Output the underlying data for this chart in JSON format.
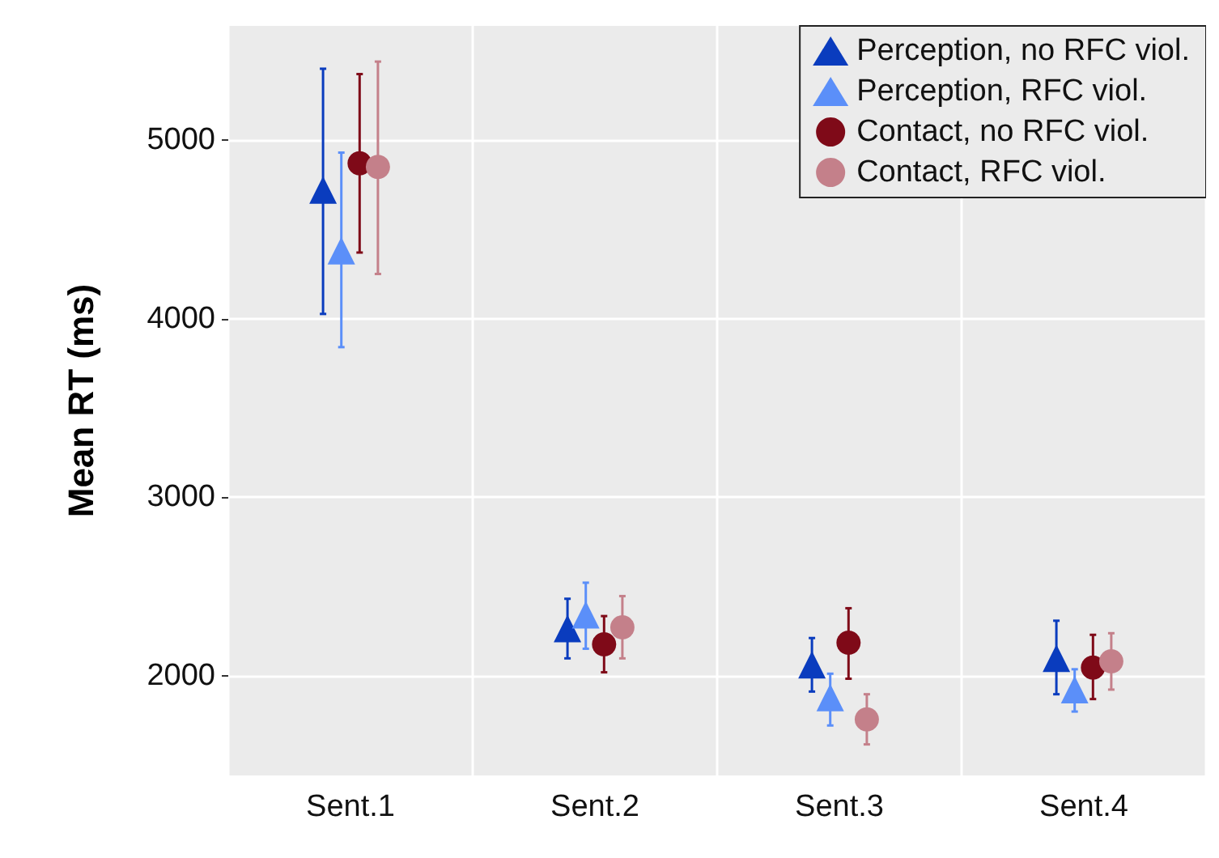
{
  "chart_data": {
    "type": "scatter",
    "ylabel": "Mean RT (ms)",
    "categories": [
      "Sent.1",
      "Sent.2",
      "Sent.3",
      "Sent.4"
    ],
    "ylim": [
      1440,
      5640
    ],
    "yticks": [
      2000,
      3000,
      4000,
      5000
    ],
    "grid": true,
    "legend": "top right",
    "series": [
      {
        "name": "Perception, no RFC viol.",
        "color": "#0a3cbe",
        "marker": "triangle",
        "values": [
          4720,
          2263,
          2060,
          2096
        ],
        "errors": [
          [
            4026,
            5400
          ],
          [
            2096,
            2430
          ],
          [
            1910,
            2210
          ],
          [
            1895,
            2307
          ]
        ]
      },
      {
        "name": "Perception, RFC viol.",
        "color": "#5b8ff9",
        "marker": "triangle",
        "values": [
          4380,
          2340,
          1877,
          1921
        ],
        "errors": [
          [
            3840,
            4930
          ],
          [
            2150,
            2520
          ],
          [
            1720,
            2010
          ],
          [
            1798,
            2035
          ]
        ]
      },
      {
        "name": "Contact, no RFC viol.",
        "color": "#7f0a18",
        "marker": "circle",
        "values": [
          4870,
          2175,
          2184,
          2044
        ],
        "errors": [
          [
            4370,
            5370
          ],
          [
            2018,
            2333
          ],
          [
            1982,
            2377
          ],
          [
            1868,
            2228
          ]
        ]
      },
      {
        "name": "Contact, RFC viol.",
        "color": "#c4808a",
        "marker": "circle",
        "values": [
          4850,
          2270,
          1754,
          2079
        ],
        "errors": [
          [
            4250,
            5440
          ],
          [
            2096,
            2445
          ],
          [
            1614,
            1895
          ],
          [
            1921,
            2237
          ]
        ]
      }
    ]
  }
}
